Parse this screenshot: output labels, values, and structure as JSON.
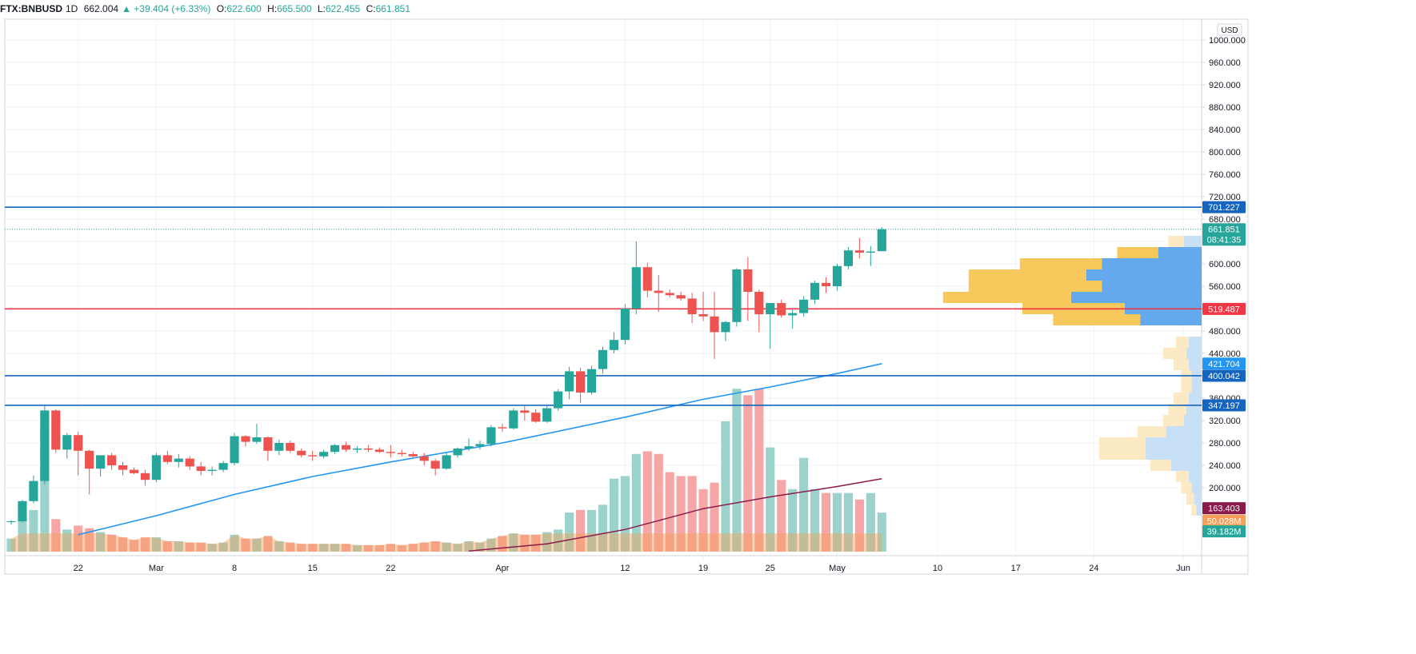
{
  "header": {
    "symbol": "FTX:BNBUSD",
    "interval": "1D",
    "last": "662.004",
    "change": "▲ +39.404 (+6.33%)",
    "o_label": "O:",
    "o": "622.600",
    "h_label": "H:",
    "h": "665.500",
    "l_label": "L:",
    "l": "622.455",
    "c_label": "C:",
    "c": "661.851"
  },
  "colors": {
    "up": "#26a69a",
    "down": "#ef5350",
    "volume_up": "#9bd3cc",
    "volume_down": "#f6a6a5",
    "sma_price": "#2196f3",
    "sma_volume": "#8b1a4b",
    "level_blue": "#1565c0",
    "level_red": "#f23645",
    "vp_up": "#f7c85c",
    "vp_down": "#64a9ee",
    "vp_up_light": "#fbeac4",
    "vp_down_light": "#c7e0f6",
    "grid": "#f0f3fa",
    "axis_text": "#131722"
  },
  "chart_data": {
    "type": "candlestick",
    "currency": "USD",
    "y_ticks": [
      "1000.000",
      "960.000",
      "920.000",
      "880.000",
      "840.000",
      "800.000",
      "760.000",
      "720.000",
      "680.000",
      "640.000",
      "600.000",
      "560.000",
      "520.000",
      "480.000",
      "440.000",
      "400.000",
      "360.000",
      "320.000",
      "280.000",
      "240.000",
      "200.000"
    ],
    "x_ticks": [
      {
        "label": "22",
        "date": "2021-02-22"
      },
      {
        "label": "Mar",
        "date": "2021-03-01"
      },
      {
        "label": "8",
        "date": "2021-03-08"
      },
      {
        "label": "15",
        "date": "2021-03-15"
      },
      {
        "label": "22",
        "date": "2021-03-22"
      },
      {
        "label": "Apr",
        "date": "2021-04-01"
      },
      {
        "label": "12",
        "date": "2021-04-12"
      },
      {
        "label": "19",
        "date": "2021-04-19"
      },
      {
        "label": "25",
        "date": "2021-04-25"
      },
      {
        "label": "May",
        "date": "2021-05-01"
      },
      {
        "label": "10",
        "date": "2021-05-10"
      },
      {
        "label": "17",
        "date": "2021-05-17"
      },
      {
        "label": "24",
        "date": "2021-05-24"
      },
      {
        "label": "Jun",
        "date": "2021-06-01"
      }
    ],
    "x_range": [
      "2021-02-16",
      "2021-06-02"
    ],
    "y_range": [
      115,
      1040
    ],
    "candles": [
      {
        "d": "2021-02-16",
        "o": 139,
        "h": 142,
        "l": 134,
        "c": 140,
        "v": 0.1
      },
      {
        "d": "2021-02-17",
        "o": 140,
        "h": 178,
        "l": 138,
        "c": 176,
        "v": 0.26
      },
      {
        "d": "2021-02-18",
        "o": 176,
        "h": 222,
        "l": 172,
        "c": 212,
        "v": 0.32
      },
      {
        "d": "2021-02-19",
        "o": 212,
        "h": 346,
        "l": 206,
        "c": 338,
        "v": 0.95
      },
      {
        "d": "2021-02-20",
        "o": 338,
        "h": 340,
        "l": 262,
        "c": 268,
        "v": 0.25
      },
      {
        "d": "2021-02-21",
        "o": 268,
        "h": 298,
        "l": 252,
        "c": 294,
        "v": 0.17
      },
      {
        "d": "2021-02-22",
        "o": 294,
        "h": 300,
        "l": 222,
        "c": 266,
        "v": 0.2
      },
      {
        "d": "2021-02-23",
        "o": 266,
        "h": 268,
        "l": 188,
        "c": 234,
        "v": 0.18
      },
      {
        "d": "2021-02-24",
        "o": 234,
        "h": 256,
        "l": 220,
        "c": 258,
        "v": 0.15
      },
      {
        "d": "2021-02-25",
        "o": 258,
        "h": 262,
        "l": 232,
        "c": 240,
        "v": 0.13
      },
      {
        "d": "2021-02-26",
        "o": 240,
        "h": 246,
        "l": 222,
        "c": 232,
        "v": 0.11
      },
      {
        "d": "2021-02-27",
        "o": 232,
        "h": 236,
        "l": 224,
        "c": 226,
        "v": 0.09
      },
      {
        "d": "2021-02-28",
        "o": 226,
        "h": 232,
        "l": 204,
        "c": 214,
        "v": 0.11
      },
      {
        "d": "2021-03-01",
        "o": 214,
        "h": 262,
        "l": 210,
        "c": 258,
        "v": 0.11
      },
      {
        "d": "2021-03-02",
        "o": 258,
        "h": 266,
        "l": 242,
        "c": 246,
        "v": 0.08
      },
      {
        "d": "2021-03-03",
        "o": 246,
        "h": 260,
        "l": 236,
        "c": 252,
        "v": 0.08
      },
      {
        "d": "2021-03-04",
        "o": 252,
        "h": 256,
        "l": 232,
        "c": 238,
        "v": 0.07
      },
      {
        "d": "2021-03-05",
        "o": 238,
        "h": 246,
        "l": 222,
        "c": 230,
        "v": 0.07
      },
      {
        "d": "2021-03-06",
        "o": 230,
        "h": 238,
        "l": 222,
        "c": 232,
        "v": 0.06
      },
      {
        "d": "2021-03-07",
        "o": 232,
        "h": 248,
        "l": 228,
        "c": 244,
        "v": 0.07
      },
      {
        "d": "2021-03-08",
        "o": 244,
        "h": 298,
        "l": 240,
        "c": 292,
        "v": 0.13
      },
      {
        "d": "2021-03-09",
        "o": 292,
        "h": 294,
        "l": 274,
        "c": 282,
        "v": 0.1
      },
      {
        "d": "2021-03-10",
        "o": 282,
        "h": 314,
        "l": 278,
        "c": 290,
        "v": 0.1
      },
      {
        "d": "2021-03-11",
        "o": 290,
        "h": 292,
        "l": 248,
        "c": 266,
        "v": 0.12
      },
      {
        "d": "2021-03-12",
        "o": 266,
        "h": 286,
        "l": 258,
        "c": 280,
        "v": 0.08
      },
      {
        "d": "2021-03-13",
        "o": 280,
        "h": 284,
        "l": 262,
        "c": 266,
        "v": 0.07
      },
      {
        "d": "2021-03-14",
        "o": 266,
        "h": 270,
        "l": 254,
        "c": 258,
        "v": 0.06
      },
      {
        "d": "2021-03-15",
        "o": 258,
        "h": 266,
        "l": 248,
        "c": 256,
        "v": 0.06
      },
      {
        "d": "2021-03-16",
        "o": 256,
        "h": 268,
        "l": 252,
        "c": 264,
        "v": 0.06
      },
      {
        "d": "2021-03-17",
        "o": 264,
        "h": 278,
        "l": 260,
        "c": 276,
        "v": 0.06
      },
      {
        "d": "2021-03-18",
        "o": 276,
        "h": 282,
        "l": 264,
        "c": 268,
        "v": 0.06
      },
      {
        "d": "2021-03-19",
        "o": 268,
        "h": 274,
        "l": 262,
        "c": 270,
        "v": 0.05
      },
      {
        "d": "2021-03-20",
        "o": 270,
        "h": 276,
        "l": 264,
        "c": 268,
        "v": 0.05
      },
      {
        "d": "2021-03-21",
        "o": 268,
        "h": 272,
        "l": 262,
        "c": 264,
        "v": 0.05
      },
      {
        "d": "2021-03-22",
        "o": 264,
        "h": 276,
        "l": 254,
        "c": 262,
        "v": 0.06
      },
      {
        "d": "2021-03-23",
        "o": 262,
        "h": 268,
        "l": 256,
        "c": 260,
        "v": 0.05
      },
      {
        "d": "2021-03-24",
        "o": 260,
        "h": 264,
        "l": 254,
        "c": 256,
        "v": 0.06
      },
      {
        "d": "2021-03-25",
        "o": 256,
        "h": 262,
        "l": 240,
        "c": 248,
        "v": 0.07
      },
      {
        "d": "2021-03-26",
        "o": 248,
        "h": 252,
        "l": 222,
        "c": 234,
        "v": 0.08
      },
      {
        "d": "2021-03-27",
        "o": 234,
        "h": 262,
        "l": 232,
        "c": 258,
        "v": 0.07
      },
      {
        "d": "2021-03-28",
        "o": 258,
        "h": 272,
        "l": 254,
        "c": 270,
        "v": 0.06
      },
      {
        "d": "2021-03-29",
        "o": 270,
        "h": 288,
        "l": 266,
        "c": 274,
        "v": 0.08
      },
      {
        "d": "2021-03-30",
        "o": 274,
        "h": 284,
        "l": 268,
        "c": 278,
        "v": 0.07
      },
      {
        "d": "2021-03-31",
        "o": 278,
        "h": 312,
        "l": 274,
        "c": 308,
        "v": 0.1
      },
      {
        "d": "2021-04-01",
        "o": 308,
        "h": 314,
        "l": 300,
        "c": 306,
        "v": 0.12
      },
      {
        "d": "2021-04-02",
        "o": 306,
        "h": 342,
        "l": 304,
        "c": 338,
        "v": 0.14
      },
      {
        "d": "2021-04-03",
        "o": 338,
        "h": 346,
        "l": 320,
        "c": 334,
        "v": 0.13
      },
      {
        "d": "2021-04-04",
        "o": 334,
        "h": 340,
        "l": 316,
        "c": 318,
        "v": 0.13
      },
      {
        "d": "2021-04-05",
        "o": 318,
        "h": 346,
        "l": 316,
        "c": 342,
        "v": 0.15
      },
      {
        "d": "2021-04-06",
        "o": 342,
        "h": 376,
        "l": 338,
        "c": 372,
        "v": 0.17
      },
      {
        "d": "2021-04-07",
        "o": 372,
        "h": 416,
        "l": 358,
        "c": 408,
        "v": 0.3
      },
      {
        "d": "2021-04-08",
        "o": 408,
        "h": 414,
        "l": 352,
        "c": 370,
        "v": 0.32
      },
      {
        "d": "2021-04-09",
        "o": 370,
        "h": 418,
        "l": 366,
        "c": 412,
        "v": 0.32
      },
      {
        "d": "2021-04-10",
        "o": 412,
        "h": 452,
        "l": 404,
        "c": 446,
        "v": 0.36
      },
      {
        "d": "2021-04-11",
        "o": 446,
        "h": 478,
        "l": 440,
        "c": 464,
        "v": 0.56
      },
      {
        "d": "2021-04-12",
        "o": 464,
        "h": 528,
        "l": 456,
        "c": 520,
        "v": 0.58
      },
      {
        "d": "2021-04-13",
        "o": 520,
        "h": 640,
        "l": 510,
        "c": 594,
        "v": 0.75
      },
      {
        "d": "2021-04-14",
        "o": 594,
        "h": 602,
        "l": 540,
        "c": 552,
        "v": 0.77
      },
      {
        "d": "2021-04-15",
        "o": 552,
        "h": 580,
        "l": 514,
        "c": 548,
        "v": 0.75
      },
      {
        "d": "2021-04-16",
        "o": 548,
        "h": 554,
        "l": 540,
        "c": 544,
        "v": 0.61
      },
      {
        "d": "2021-04-17",
        "o": 544,
        "h": 550,
        "l": 534,
        "c": 538,
        "v": 0.58
      },
      {
        "d": "2021-04-18",
        "o": 538,
        "h": 548,
        "l": 494,
        "c": 510,
        "v": 0.58
      },
      {
        "d": "2021-04-19",
        "o": 510,
        "h": 550,
        "l": 498,
        "c": 506,
        "v": 0.48
      },
      {
        "d": "2021-04-20",
        "o": 506,
        "h": 550,
        "l": 430,
        "c": 478,
        "v": 0.53
      },
      {
        "d": "2021-04-21",
        "o": 478,
        "h": 498,
        "l": 462,
        "c": 496,
        "v": 1.0
      },
      {
        "d": "2021-04-22",
        "o": 496,
        "h": 592,
        "l": 488,
        "c": 590,
        "v": 1.25
      },
      {
        "d": "2021-04-23",
        "o": 590,
        "h": 612,
        "l": 498,
        "c": 550,
        "v": 1.2
      },
      {
        "d": "2021-04-24",
        "o": 550,
        "h": 554,
        "l": 478,
        "c": 510,
        "v": 1.25
      },
      {
        "d": "2021-04-25",
        "o": 510,
        "h": 522,
        "l": 448,
        "c": 530,
        "v": 0.8
      },
      {
        "d": "2021-04-26",
        "o": 530,
        "h": 536,
        "l": 504,
        "c": 508,
        "v": 0.55
      },
      {
        "d": "2021-04-27",
        "o": 508,
        "h": 518,
        "l": 484,
        "c": 512,
        "v": 0.48
      },
      {
        "d": "2021-04-28",
        "o": 512,
        "h": 542,
        "l": 506,
        "c": 536,
        "v": 0.72
      },
      {
        "d": "2021-04-29",
        "o": 536,
        "h": 570,
        "l": 528,
        "c": 566,
        "v": 0.48
      },
      {
        "d": "2021-04-30",
        "o": 566,
        "h": 576,
        "l": 548,
        "c": 560,
        "v": 0.45
      },
      {
        "d": "2021-05-01",
        "o": 560,
        "h": 600,
        "l": 552,
        "c": 596,
        "v": 0.45
      },
      {
        "d": "2021-05-02",
        "o": 596,
        "h": 630,
        "l": 590,
        "c": 624,
        "v": 0.45
      },
      {
        "d": "2021-05-03",
        "o": 624,
        "h": 646,
        "l": 610,
        "c": 620,
        "v": 0.4
      },
      {
        "d": "2021-05-04",
        "o": 620,
        "h": 632,
        "l": 596,
        "c": 622,
        "v": 0.45
      },
      {
        "d": "2021-05-05",
        "o": 622.6,
        "h": 665.5,
        "l": 622.455,
        "c": 661.851,
        "v": 0.3
      }
    ],
    "sma_price": [
      {
        "d": "2021-02-22",
        "y": 116
      },
      {
        "d": "2021-03-01",
        "y": 150
      },
      {
        "d": "2021-03-08",
        "y": 188
      },
      {
        "d": "2021-03-15",
        "y": 220
      },
      {
        "d": "2021-03-22",
        "y": 246
      },
      {
        "d": "2021-04-01",
        "y": 280
      },
      {
        "d": "2021-04-12",
        "y": 326
      },
      {
        "d": "2021-04-19",
        "y": 358
      },
      {
        "d": "2021-04-25",
        "y": 380
      },
      {
        "d": "2021-05-01",
        "y": 404
      },
      {
        "d": "2021-05-05",
        "y": 421.704
      }
    ],
    "sma_volume": [
      {
        "d": "2021-03-29",
        "v": 0.005
      },
      {
        "d": "2021-04-05",
        "v": 0.06
      },
      {
        "d": "2021-04-12",
        "v": 0.17
      },
      {
        "d": "2021-04-19",
        "v": 0.33
      },
      {
        "d": "2021-04-25",
        "v": 0.42
      },
      {
        "d": "2021-05-01",
        "v": 0.5
      },
      {
        "d": "2021-05-05",
        "v": 0.56
      }
    ],
    "horizontal_levels": [
      {
        "price": 701.227,
        "label": "701.227",
        "color": "level_blue"
      },
      {
        "price": 519.487,
        "label": "519.487",
        "color": "level_red"
      },
      {
        "price": 400.042,
        "label": "400.042",
        "color": "level_blue"
      },
      {
        "price": 347.197,
        "label": "347.197",
        "color": "level_blue"
      }
    ],
    "axis_labels": [
      {
        "text": "661.851",
        "price": 661.851,
        "color": "up",
        "sub": "08:41:35"
      },
      {
        "text": "421.704",
        "price": 421.704,
        "color": "sma_price"
      },
      {
        "text": "163.403",
        "price": 163.403,
        "color": "sma_volume"
      },
      {
        "text": "50.028M",
        "price": 141,
        "color": "#f5a05a"
      },
      {
        "text": "39.182M",
        "price": 122,
        "color": "up"
      }
    ],
    "volume_profile": [
      {
        "p": 640,
        "up": 0.06,
        "down": 0.07,
        "light": true
      },
      {
        "p": 620,
        "up": 0.16,
        "down": 0.17,
        "light": false
      },
      {
        "p": 600,
        "up": 0.32,
        "down": 0.39,
        "light": false
      },
      {
        "p": 580,
        "up": 0.46,
        "down": 0.45,
        "light": false
      },
      {
        "p": 560,
        "up": 0.52,
        "down": 0.39,
        "light": false
      },
      {
        "p": 540,
        "up": 0.5,
        "down": 0.51,
        "light": false
      },
      {
        "p": 520,
        "up": 0.4,
        "down": 0.3,
        "light": false
      },
      {
        "p": 500,
        "up": 0.34,
        "down": 0.24,
        "light": false
      },
      {
        "p": 460,
        "up": 0.05,
        "down": 0.05,
        "light": true
      },
      {
        "p": 440,
        "up": 0.09,
        "down": 0.06,
        "light": true
      },
      {
        "p": 420,
        "up": 0.06,
        "down": 0.05,
        "light": true
      },
      {
        "p": 400,
        "up": 0.04,
        "down": 0.04,
        "light": true
      },
      {
        "p": 380,
        "up": 0.04,
        "down": 0.04,
        "light": true
      },
      {
        "p": 360,
        "up": 0.06,
        "down": 0.05,
        "light": true
      },
      {
        "p": 340,
        "up": 0.07,
        "down": 0.06,
        "light": true
      },
      {
        "p": 320,
        "up": 0.08,
        "down": 0.07,
        "light": true
      },
      {
        "p": 300,
        "up": 0.11,
        "down": 0.14,
        "light": true
      },
      {
        "p": 280,
        "up": 0.18,
        "down": 0.22,
        "light": true
      },
      {
        "p": 260,
        "up": 0.18,
        "down": 0.22,
        "light": true
      },
      {
        "p": 240,
        "up": 0.08,
        "down": 0.12,
        "light": true
      },
      {
        "p": 220,
        "up": 0.05,
        "down": 0.05,
        "light": true
      },
      {
        "p": 200,
        "up": 0.04,
        "down": 0.04,
        "light": true
      },
      {
        "p": 180,
        "up": 0.03,
        "down": 0.03,
        "light": true
      },
      {
        "p": 160,
        "up": 0.02,
        "down": 0.02,
        "light": true
      }
    ]
  }
}
